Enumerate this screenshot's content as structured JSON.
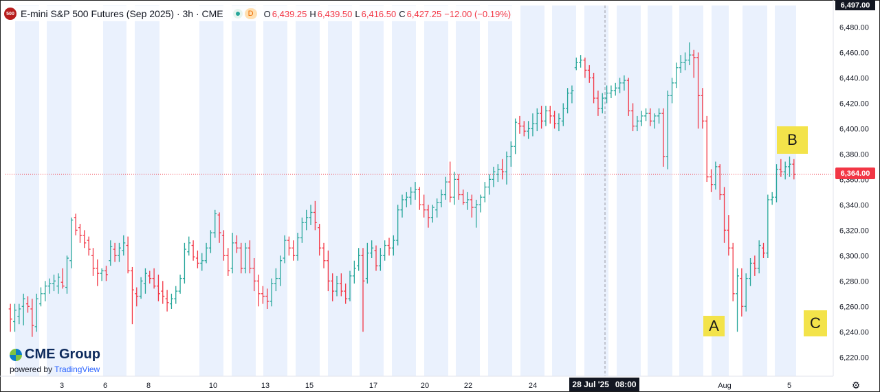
{
  "legend": {
    "symbol_badge": "500",
    "title": "E-mini S&P 500 Futures (Sep 2025) · 3h · CME",
    "status_badge": "D",
    "open_label": "O",
    "open": "6,439.25",
    "high_label": "H",
    "high": "6,439.50",
    "low_label": "L",
    "low": "6,416.50",
    "close_label": "C",
    "close": "6,427.25",
    "change": "−12.00 (−0.19%)"
  },
  "price_axis": {
    "top_label": "6,497.00",
    "current_price_label": "6,364.00"
  },
  "crosshair_label": {
    "date": "28 Jul '25",
    "time": "08:00"
  },
  "annotations": {
    "a": "A",
    "b": "B",
    "c": "C"
  },
  "branding": {
    "name": "CME Group",
    "powered_by": "powered by",
    "provider": "TradingView"
  },
  "colors": {
    "up": "#26a69a",
    "down": "#f23645",
    "session_shade": "#eaf1fd",
    "note": "#f3e34a"
  },
  "icons": {
    "settings": "gear-icon"
  },
  "chart_data": {
    "type": "ohlc-bar",
    "title": "E-mini S&P 500 Futures (Sep 2025) · 3h · CME",
    "ylim": [
      6205,
      6497
    ],
    "yticks": [
      6220,
      6240,
      6260,
      6280,
      6300,
      6320,
      6340,
      6360,
      6380,
      6400,
      6420,
      6440,
      6460,
      6480
    ],
    "xticks": [
      "3",
      "6",
      "8",
      "10",
      "13",
      "15",
      "17",
      "20",
      "22",
      "24",
      "Aug",
      "5"
    ],
    "current_price": 6364.0,
    "grid": false,
    "ohlc": [
      [
        6258,
        6262,
        6240,
        6250
      ],
      [
        6248,
        6262,
        6240,
        6257
      ],
      [
        6252,
        6262,
        6246,
        6258
      ],
      [
        6260,
        6270,
        6245,
        6266
      ],
      [
        6262,
        6268,
        6255,
        6260
      ],
      [
        6258,
        6266,
        6236,
        6245
      ],
      [
        6244,
        6270,
        6240,
        6266
      ],
      [
        6262,
        6275,
        6260,
        6270
      ],
      [
        6270,
        6280,
        6264,
        6276
      ],
      [
        6276,
        6282,
        6270,
        6278
      ],
      [
        6278,
        6285,
        6272,
        6280
      ],
      [
        6276,
        6286,
        6270,
        6283
      ],
      [
        6279,
        6290,
        6274,
        6276
      ],
      [
        6275,
        6300,
        6270,
        6298
      ],
      [
        6296,
        6330,
        6290,
        6328
      ],
      [
        6330,
        6333,
        6316,
        6320
      ],
      [
        6322,
        6325,
        6310,
        6316
      ],
      [
        6316,
        6320,
        6306,
        6310
      ],
      [
        6312,
        6315,
        6300,
        6305
      ],
      [
        6300,
        6306,
        6284,
        6290
      ],
      [
        6290,
        6297,
        6276,
        6286
      ],
      [
        6286,
        6290,
        6280,
        6288
      ],
      [
        6288,
        6292,
        6280,
        6285
      ],
      [
        6296,
        6312,
        6292,
        6307
      ],
      [
        6305,
        6310,
        6295,
        6300
      ],
      [
        6300,
        6310,
        6295,
        6306
      ],
      [
        6304,
        6316,
        6300,
        6310
      ],
      [
        6308,
        6315,
        6286,
        6288
      ],
      [
        6288,
        6291,
        6246,
        6273
      ],
      [
        6270,
        6275,
        6260,
        6268
      ],
      [
        6268,
        6283,
        6266,
        6280
      ],
      [
        6278,
        6290,
        6270,
        6286
      ],
      [
        6284,
        6288,
        6278,
        6282
      ],
      [
        6282,
        6290,
        6274,
        6276
      ],
      [
        6276,
        6285,
        6264,
        6270
      ],
      [
        6272,
        6280,
        6262,
        6268
      ],
      [
        6266,
        6273,
        6256,
        6263
      ],
      [
        6262,
        6270,
        6258,
        6266
      ],
      [
        6266,
        6276,
        6262,
        6272
      ],
      [
        6272,
        6285,
        6270,
        6282
      ],
      [
        6282,
        6310,
        6278,
        6305
      ],
      [
        6303,
        6315,
        6300,
        6310
      ],
      [
        6308,
        6312,
        6296,
        6299
      ],
      [
        6298,
        6304,
        6290,
        6294
      ],
      [
        6294,
        6302,
        6288,
        6296
      ],
      [
        6296,
        6310,
        6294,
        6306
      ],
      [
        6306,
        6320,
        6302,
        6318
      ],
      [
        6318,
        6336,
        6314,
        6333
      ],
      [
        6332,
        6334,
        6310,
        6318
      ],
      [
        6316,
        6320,
        6296,
        6300
      ],
      [
        6300,
        6306,
        6284,
        6288
      ],
      [
        6290,
        6318,
        6286,
        6310
      ],
      [
        6310,
        6316,
        6302,
        6306
      ],
      [
        6306,
        6310,
        6286,
        6290
      ],
      [
        6290,
        6310,
        6286,
        6306
      ],
      [
        6306,
        6312,
        6286,
        6290
      ],
      [
        6290,
        6298,
        6272,
        6280
      ],
      [
        6280,
        6285,
        6260,
        6270
      ],
      [
        6270,
        6276,
        6262,
        6268
      ],
      [
        6268,
        6274,
        6258,
        6264
      ],
      [
        6264,
        6282,
        6260,
        6278
      ],
      [
        6278,
        6290,
        6272,
        6282
      ],
      [
        6282,
        6300,
        6276,
        6296
      ],
      [
        6298,
        6316,
        6294,
        6312
      ],
      [
        6312,
        6315,
        6300,
        6306
      ],
      [
        6306,
        6312,
        6296,
        6300
      ],
      [
        6300,
        6318,
        6296,
        6314
      ],
      [
        6314,
        6330,
        6310,
        6326
      ],
      [
        6326,
        6336,
        6320,
        6330
      ],
      [
        6330,
        6340,
        6324,
        6334
      ],
      [
        6334,
        6343,
        6320,
        6326
      ],
      [
        6322,
        6325,
        6300,
        6306
      ],
      [
        6306,
        6310,
        6290,
        6296
      ],
      [
        6296,
        6304,
        6272,
        6280
      ],
      [
        6280,
        6286,
        6264,
        6272
      ],
      [
        6272,
        6284,
        6268,
        6278
      ],
      [
        6278,
        6286,
        6268,
        6272
      ],
      [
        6272,
        6278,
        6262,
        6266
      ],
      [
        6266,
        6288,
        6264,
        6284
      ],
      [
        6284,
        6296,
        6278,
        6290
      ],
      [
        6292,
        6306,
        6288,
        6300
      ],
      [
        6300,
        6306,
        6240,
        6280
      ],
      [
        6282,
        6310,
        6278,
        6302
      ],
      [
        6302,
        6312,
        6298,
        6306
      ],
      [
        6304,
        6308,
        6288,
        6292
      ],
      [
        6292,
        6306,
        6288,
        6300
      ],
      [
        6300,
        6312,
        6296,
        6308
      ],
      [
        6308,
        6314,
        6300,
        6306
      ],
      [
        6306,
        6316,
        6300,
        6312
      ],
      [
        6312,
        6340,
        6308,
        6336
      ],
      [
        6336,
        6348,
        6330,
        6344
      ],
      [
        6344,
        6350,
        6338,
        6346
      ],
      [
        6346,
        6354,
        6340,
        6350
      ],
      [
        6350,
        6358,
        6344,
        6352
      ],
      [
        6352,
        6354,
        6336,
        6340
      ],
      [
        6340,
        6348,
        6330,
        6336
      ],
      [
        6336,
        6340,
        6322,
        6330
      ],
      [
        6330,
        6340,
        6326,
        6338
      ],
      [
        6336,
        6345,
        6330,
        6342
      ],
      [
        6342,
        6352,
        6338,
        6348
      ],
      [
        6348,
        6362,
        6344,
        6358
      ],
      [
        6358,
        6374,
        6342,
        6346
      ],
      [
        6346,
        6366,
        6340,
        6360
      ],
      [
        6360,
        6364,
        6344,
        6348
      ],
      [
        6348,
        6352,
        6340,
        6342
      ],
      [
        6342,
        6350,
        6336,
        6344
      ],
      [
        6344,
        6348,
        6330,
        6338
      ],
      [
        6338,
        6344,
        6322,
        6340
      ],
      [
        6340,
        6348,
        6334,
        6346
      ],
      [
        6346,
        6358,
        6342,
        6354
      ],
      [
        6354,
        6364,
        6348,
        6360
      ],
      [
        6360,
        6370,
        6354,
        6366
      ],
      [
        6364,
        6372,
        6358,
        6368
      ],
      [
        6368,
        6376,
        6360,
        6366
      ],
      [
        6366,
        6382,
        6356,
        6378
      ],
      [
        6378,
        6390,
        6370,
        6386
      ],
      [
        6386,
        6408,
        6380,
        6405
      ],
      [
        6404,
        6410,
        6396,
        6402
      ],
      [
        6402,
        6406,
        6394,
        6398
      ],
      [
        6398,
        6406,
        6392,
        6400
      ],
      [
        6400,
        6412,
        6394,
        6404
      ],
      [
        6404,
        6416,
        6398,
        6412
      ],
      [
        6412,
        6418,
        6400,
        6406
      ],
      [
        6406,
        6418,
        6402,
        6414
      ],
      [
        6414,
        6418,
        6404,
        6410
      ],
      [
        6410,
        6414,
        6400,
        6404
      ],
      [
        6404,
        6412,
        6398,
        6408
      ],
      [
        6406,
        6420,
        6402,
        6416
      ],
      [
        6416,
        6432,
        6412,
        6428
      ],
      [
        6428,
        6434,
        6420,
        6430
      ],
      [
        6448,
        6456,
        6446,
        6452
      ],
      [
        6452,
        6458,
        6448,
        6454
      ],
      [
        6454,
        6456,
        6440,
        6446
      ],
      [
        6446,
        6450,
        6436,
        6440
      ],
      [
        6440,
        6444,
        6420,
        6424
      ],
      [
        6424,
        6430,
        6410,
        6416
      ],
      [
        6416,
        6428,
        6412,
        6424
      ],
      [
        6424,
        6434,
        6420,
        6428
      ],
      [
        6428,
        6434,
        6424,
        6430
      ],
      [
        6430,
        6436,
        6426,
        6432
      ],
      [
        6432,
        6440,
        6428,
        6436
      ],
      [
        6436,
        6442,
        6430,
        6438
      ],
      [
        6438,
        6440,
        6410,
        6414
      ],
      [
        6414,
        6420,
        6398,
        6402
      ],
      [
        6402,
        6410,
        6398,
        6406
      ],
      [
        6406,
        6414,
        6402,
        6410
      ],
      [
        6410,
        6416,
        6406,
        6412
      ],
      [
        6412,
        6416,
        6402,
        6406
      ],
      [
        6406,
        6412,
        6400,
        6410
      ],
      [
        6410,
        6416,
        6404,
        6412
      ],
      [
        6412,
        6416,
        6370,
        6378
      ],
      [
        6378,
        6430,
        6368,
        6426
      ],
      [
        6426,
        6440,
        6420,
        6436
      ],
      [
        6436,
        6452,
        6432,
        6448
      ],
      [
        6448,
        6458,
        6444,
        6452
      ],
      [
        6452,
        6460,
        6446,
        6454
      ],
      [
        6454,
        6468,
        6450,
        6458
      ],
      [
        6458,
        6462,
        6440,
        6456
      ],
      [
        6456,
        6460,
        6400,
        6426
      ],
      [
        6426,
        6432,
        6400,
        6406
      ],
      [
        6406,
        6410,
        6358,
        6362
      ],
      [
        6362,
        6368,
        6350,
        6356
      ],
      [
        6356,
        6374,
        6352,
        6370
      ],
      [
        6370,
        6372,
        6344,
        6348
      ],
      [
        6348,
        6354,
        6310,
        6320
      ],
      [
        6320,
        6332,
        6300,
        6306
      ],
      [
        6306,
        6310,
        6264,
        6270
      ],
      [
        6270,
        6290,
        6240,
        6284
      ],
      [
        6282,
        6290,
        6252,
        6260
      ],
      [
        6260,
        6286,
        6256,
        6282
      ],
      [
        6282,
        6298,
        6276,
        6294
      ],
      [
        6294,
        6300,
        6284,
        6290
      ],
      [
        6290,
        6312,
        6286,
        6308
      ],
      [
        6306,
        6310,
        6298,
        6302
      ],
      [
        6302,
        6348,
        6298,
        6344
      ],
      [
        6344,
        6350,
        6340,
        6346
      ],
      [
        6346,
        6372,
        6342,
        6368
      ],
      [
        6368,
        6376,
        6362,
        6366
      ],
      [
        6366,
        6374,
        6360,
        6370
      ],
      [
        6370,
        6378,
        6362,
        6372
      ],
      [
        6372,
        6376,
        6360,
        6364
      ]
    ]
  }
}
